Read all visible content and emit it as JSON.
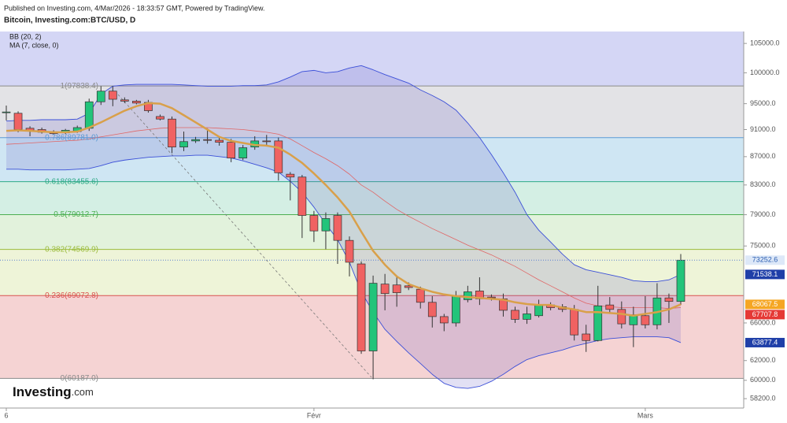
{
  "chart_data": {
    "type": "candlestick",
    "header": "Published on Investing.com, 4/Mar/2026 - 18:33:57 GMT, Powered by TradingView.",
    "title": "Bitcoin, Investing.com:BTC/USD, D",
    "indicators": [
      "BB (20, 2)",
      "MA (7, close, 0)"
    ],
    "logo": {
      "brand": "Investing",
      "suffix": ".com"
    },
    "log_scale": true,
    "ylim": [
      57300,
      107100
    ],
    "yticks": [
      {
        "value": 58200,
        "label": "58200.0"
      },
      {
        "value": 60000,
        "label": "60000.0"
      },
      {
        "value": 62000,
        "label": "62000.0"
      },
      {
        "value": 66000,
        "label": "66000.0"
      },
      {
        "value": 75000,
        "label": "75000.0"
      },
      {
        "value": 79000,
        "label": "79000.0"
      },
      {
        "value": 83000,
        "label": "83000.0"
      },
      {
        "value": 87000,
        "label": "87000.0"
      },
      {
        "value": 91000,
        "label": "91000.0"
      },
      {
        "value": 95000,
        "label": "95000.0"
      },
      {
        "value": 100000,
        "label": "100000.0"
      },
      {
        "value": 105000,
        "label": "105000.0"
      }
    ],
    "categories": [
      "6",
      null,
      null,
      null,
      null,
      null,
      null,
      null,
      null,
      null,
      null,
      null,
      null,
      null,
      null,
      null,
      null,
      null,
      null,
      null,
      null,
      null,
      null,
      null,
      null,
      null,
      "Févr",
      null,
      null,
      null,
      null,
      null,
      null,
      null,
      null,
      null,
      null,
      null,
      null,
      null,
      null,
      null,
      null,
      null,
      null,
      null,
      null,
      null,
      null,
      null,
      null,
      null,
      null,
      null,
      "Mars",
      null,
      null,
      null
    ],
    "open": [
      93600,
      93500,
      91200,
      91000,
      90600,
      90500,
      90700,
      91200,
      95300,
      97000,
      95600,
      95400,
      95200,
      93000,
      92600,
      88400,
      89300,
      89500,
      89400,
      89100,
      86800,
      88400,
      89300,
      89300,
      84500,
      84100,
      78900,
      76900,
      78900,
      75700,
      72800,
      63000,
      70400,
      70300,
      70200,
      69800,
      68300,
      66700,
      66000,
      68600,
      69600,
      68900,
      68700,
      67400,
      66400,
      66800,
      68000,
      67800,
      67500,
      64800,
      64100,
      68000,
      67500,
      65800,
      66800,
      65800,
      68800,
      68400
    ],
    "high": [
      94700,
      93800,
      91500,
      91300,
      90900,
      91100,
      91600,
      95800,
      97800,
      97800,
      96000,
      95600,
      95600,
      93300,
      93000,
      90700,
      89900,
      91200,
      89800,
      89600,
      88700,
      90000,
      90200,
      89800,
      84800,
      84400,
      79500,
      79300,
      79300,
      76200,
      73100,
      71400,
      71600,
      71200,
      70600,
      70100,
      69000,
      67000,
      69600,
      70200,
      71200,
      69200,
      69300,
      67800,
      67800,
      68600,
      68300,
      68100,
      68000,
      65800,
      70200,
      68900,
      68400,
      67800,
      69000,
      70500,
      69300,
      74000
    ],
    "low": [
      92400,
      90600,
      90000,
      90400,
      90200,
      90300,
      90500,
      90800,
      94800,
      94600,
      95100,
      94900,
      93600,
      92400,
      87500,
      87800,
      89000,
      88900,
      88600,
      86200,
      86500,
      88000,
      88600,
      83600,
      80900,
      76000,
      75500,
      74600,
      72800,
      71300,
      62700,
      60100,
      67400,
      67800,
      69700,
      67600,
      65500,
      65100,
      65600,
      68300,
      68000,
      68500,
      66700,
      66000,
      65900,
      66600,
      67400,
      67200,
      64100,
      62900,
      64000,
      67000,
      65400,
      63400,
      65400,
      65300,
      66000,
      68000
    ],
    "close": [
      93700,
      91000,
      90900,
      90600,
      90400,
      90900,
      91300,
      95300,
      97000,
      95700,
      95400,
      95100,
      93900,
      92600,
      88400,
      89200,
      89500,
      89400,
      89100,
      86800,
      88300,
      89300,
      89200,
      84700,
      84100,
      78900,
      76900,
      78500,
      75700,
      73000,
      63000,
      70500,
      69300,
      69400,
      70000,
      68300,
      66700,
      66000,
      69000,
      69500,
      68700,
      68800,
      67400,
      66400,
      67000,
      68000,
      67700,
      67500,
      64700,
      64100,
      67900,
      67500,
      65900,
      66900,
      65800,
      68800,
      68400,
      73252.6
    ],
    "up_color": "#22c47a",
    "down_color": "#f06262",
    "bb_upper": {
      "color": "#3b4fd8",
      "values": [
        92300,
        92400,
        92400,
        92500,
        92500,
        92500,
        92600,
        93500,
        96500,
        97800,
        98000,
        98100,
        98100,
        98100,
        98100,
        98000,
        97900,
        97800,
        97800,
        97800,
        97900,
        97900,
        98000,
        98500,
        99300,
        100200,
        100400,
        100000,
        100200,
        100800,
        101200,
        100500,
        99700,
        99000,
        98300,
        97200,
        96300,
        95300,
        94000,
        92000,
        89800,
        87300,
        84700,
        82000,
        79000,
        77000,
        75500,
        74000,
        72700,
        72100,
        71800,
        71500,
        71200,
        70800,
        70700,
        70700,
        70900,
        71538.1
      ]
    },
    "bb_middle": {
      "color": "#e06666",
      "values": [
        88800,
        88900,
        89000,
        89100,
        89200,
        89300,
        89400,
        89600,
        89900,
        90200,
        90500,
        90800,
        91000,
        91200,
        91300,
        91300,
        91300,
        91300,
        91200,
        91100,
        91000,
        90800,
        90600,
        90300,
        89600,
        88600,
        87600,
        86700,
        85700,
        84500,
        83000,
        82000,
        80800,
        79700,
        78800,
        78000,
        77200,
        76500,
        75800,
        75100,
        74500,
        73900,
        73200,
        72500,
        71700,
        70900,
        70200,
        69500,
        68800,
        68200,
        67900,
        67800,
        67700,
        67700,
        67700,
        67700,
        67600,
        67707.8
      ]
    },
    "bb_lower": {
      "color": "#3b4fd8",
      "values": [
        85200,
        85200,
        85100,
        85100,
        85100,
        85100,
        85200,
        85300,
        85700,
        86200,
        86500,
        86700,
        86900,
        87000,
        87100,
        87100,
        87200,
        87200,
        87000,
        86800,
        86400,
        85900,
        85400,
        84800,
        83500,
        82000,
        80000,
        77800,
        75800,
        73000,
        69500,
        67200,
        65300,
        64000,
        62800,
        61700,
        60600,
        59700,
        59300,
        59200,
        59400,
        59900,
        60600,
        61400,
        62100,
        62500,
        62800,
        63100,
        63500,
        63800,
        64100,
        64300,
        64400,
        64500,
        64500,
        64500,
        64400,
        63877.4
      ]
    },
    "ma": {
      "color": "#d9a04a",
      "values": [
        90800,
        90900,
        90800,
        90700,
        90600,
        90600,
        90700,
        91300,
        92100,
        93000,
        93900,
        94600,
        95100,
        95000,
        94300,
        93200,
        92100,
        91000,
        89900,
        89300,
        89000,
        88700,
        88600,
        88300,
        87300,
        86100,
        84600,
        83000,
        81300,
        79400,
        76800,
        74400,
        72700,
        71300,
        70400,
        69900,
        69500,
        69200,
        69000,
        68900,
        68800,
        68700,
        68600,
        68300,
        68100,
        68000,
        68000,
        67700,
        67500,
        67200,
        67200,
        67100,
        67000,
        66800,
        67000,
        67200,
        67500,
        68067.5
      ]
    },
    "fib_levels": [
      {
        "value": 97838.4,
        "label": "1(97838.4)",
        "color": "#8a8a8a",
        "fill": "#e3e3e6"
      },
      {
        "value": 89781.0,
        "label": "0.786(89781.0)",
        "color": "#5b9bd5",
        "fill": "#cfe6f3"
      },
      {
        "value": 83455.6,
        "label": "0.618(83455.6)",
        "color": "#2eaa86",
        "fill": "#d4efe4"
      },
      {
        "value": 79012.7,
        "label": "0.5(79012.7)",
        "color": "#4caf50",
        "fill": "#e2f2dc"
      },
      {
        "value": 74569.9,
        "label": "0.382(74569.9)",
        "color": "#9bbb3b",
        "fill": "#eef4d8"
      },
      {
        "value": 69072.8,
        "label": "0.236(69072.8)",
        "color": "#d9534f",
        "fill": "#f5d3d3"
      },
      {
        "value": 60187.0,
        "label": "0(60187.0)",
        "color": "#8a8a8a"
      }
    ],
    "price_labels": [
      {
        "value": 73252.6,
        "bg": "#dde8f8",
        "fg": "#2a5db0"
      },
      {
        "value": 71538.1,
        "bg": "#1f3fa8",
        "fg": "#ffffff"
      },
      {
        "value": 68067.5,
        "bg": "#f5a623",
        "fg": "#ffffff"
      },
      {
        "value": 67707.8,
        "bg": "#e53935",
        "fg": "#ffffff"
      },
      {
        "value": 63877.4,
        "bg": "#1f3fa8",
        "fg": "#ffffff"
      }
    ]
  }
}
